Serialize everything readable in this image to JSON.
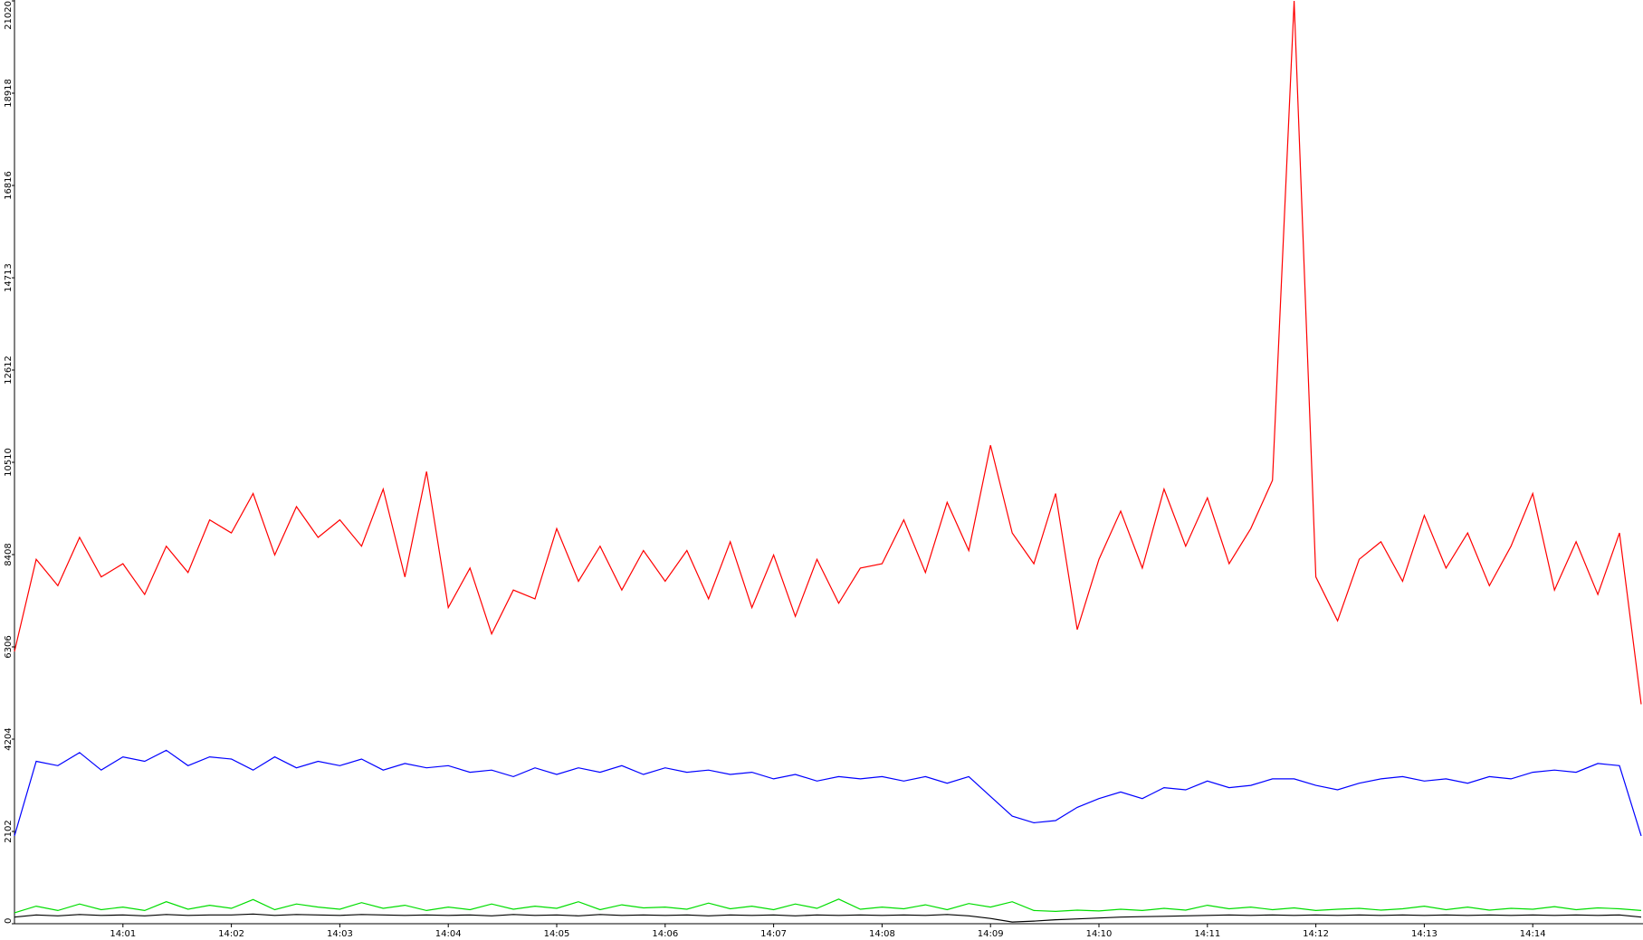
{
  "chart_data": {
    "type": "line",
    "categories": [
      null,
      null,
      null,
      null,
      null,
      "14:01",
      null,
      null,
      null,
      null,
      "14:02",
      null,
      null,
      null,
      null,
      "14:03",
      null,
      null,
      null,
      null,
      "14:04",
      null,
      null,
      null,
      null,
      "14:05",
      null,
      null,
      null,
      null,
      "14:06",
      null,
      null,
      null,
      null,
      "14:07",
      null,
      null,
      null,
      null,
      "14:08",
      null,
      null,
      null,
      null,
      "14:09",
      null,
      null,
      null,
      null,
      "14:10",
      null,
      null,
      null,
      null,
      "14:11",
      null,
      null,
      null,
      null,
      "14:12",
      null,
      null,
      null,
      null,
      "14:13",
      null,
      null,
      null,
      null,
      "14:14",
      null,
      null,
      null,
      null,
      null
    ],
    "series": [
      {
        "color": "#ff0000",
        "values": [
          6200,
          8300,
          7700,
          8800,
          7900,
          8200,
          7500,
          8600,
          8000,
          9200,
          8900,
          9800,
          8400,
          9500,
          8800,
          9200,
          8600,
          9900,
          7900,
          10300,
          7200,
          8100,
          6600,
          7600,
          7400,
          9000,
          7800,
          8600,
          7600,
          8500,
          7800,
          8500,
          7400,
          8700,
          7200,
          8400,
          7000,
          8300,
          7300,
          8100,
          8200,
          9200,
          8000,
          9600,
          8500,
          10900,
          8900,
          8200,
          9800,
          6700,
          8300,
          9400,
          8100,
          9900,
          8600,
          9700,
          8200,
          9000,
          10100,
          21020,
          7900,
          6900,
          8300,
          8700,
          7800,
          9300,
          8100,
          8900,
          7700,
          8600,
          9800,
          7600,
          8700,
          7500,
          8900,
          5000
        ]
      },
      {
        "color": "#0000ff",
        "values": [
          2000,
          3700,
          3600,
          3900,
          3500,
          3800,
          3700,
          3950,
          3600,
          3800,
          3750,
          3500,
          3800,
          3550,
          3700,
          3600,
          3750,
          3500,
          3650,
          3550,
          3600,
          3450,
          3500,
          3350,
          3550,
          3400,
          3550,
          3450,
          3600,
          3400,
          3550,
          3450,
          3500,
          3400,
          3450,
          3300,
          3400,
          3250,
          3350,
          3300,
          3350,
          3250,
          3350,
          3200,
          3350,
          2900,
          2450,
          2300,
          2350,
          2650,
          2850,
          3000,
          2850,
          3100,
          3050,
          3250,
          3100,
          3150,
          3300,
          3300,
          3150,
          3050,
          3200,
          3300,
          3350,
          3250,
          3300,
          3200,
          3350,
          3300,
          3450,
          3500,
          3450,
          3650,
          3600,
          2000
        ]
      },
      {
        "color": "#00dd00",
        "values": [
          250,
          400,
          300,
          450,
          320,
          380,
          300,
          500,
          330,
          420,
          350,
          550,
          320,
          450,
          380,
          330,
          480,
          350,
          420,
          300,
          380,
          320,
          450,
          330,
          400,
          350,
          500,
          320,
          430,
          360,
          380,
          330,
          470,
          340,
          400,
          320,
          450,
          350,
          560,
          330,
          380,
          340,
          430,
          320,
          460,
          380,
          500,
          300,
          280,
          310,
          290,
          330,
          300,
          350,
          310,
          420,
          340,
          380,
          320,
          360,
          300,
          330,
          350,
          310,
          340,
          400,
          320,
          380,
          310,
          350,
          330,
          390,
          320,
          360,
          340,
          300
        ]
      },
      {
        "color": "#000000",
        "values": [
          150,
          200,
          180,
          210,
          190,
          200,
          180,
          210,
          190,
          200,
          200,
          220,
          190,
          210,
          200,
          190,
          210,
          200,
          190,
          200,
          190,
          200,
          180,
          210,
          190,
          200,
          180,
          210,
          190,
          200,
          190,
          200,
          180,
          200,
          190,
          200,
          180,
          200,
          190,
          200,
          190,
          200,
          190,
          210,
          180,
          120,
          40,
          60,
          90,
          110,
          130,
          150,
          160,
          170,
          180,
          190,
          200,
          190,
          200,
          190,
          200,
          190,
          200,
          190,
          200,
          190,
          200,
          190,
          200,
          190,
          200,
          190,
          200,
          190,
          200,
          150
        ]
      }
    ],
    "ylim": [
      0,
      21020
    ],
    "yticks": [
      0,
      2102,
      4204,
      6306,
      8408,
      10510,
      12612,
      14713,
      16816,
      18918,
      21020
    ],
    "grid": false
  }
}
